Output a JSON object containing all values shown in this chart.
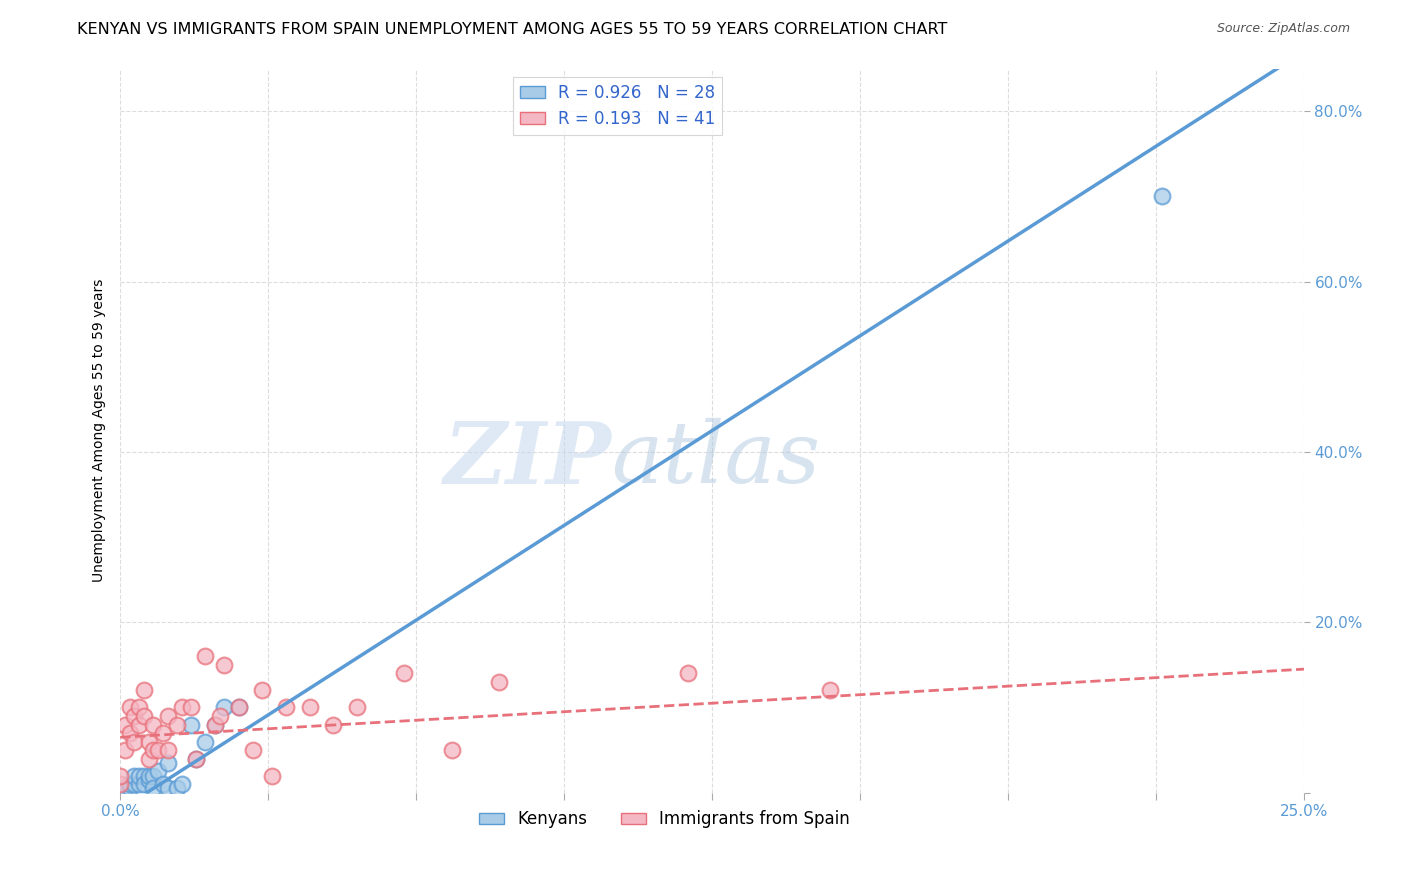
{
  "title": "KENYAN VS IMMIGRANTS FROM SPAIN UNEMPLOYMENT AMONG AGES 55 TO 59 YEARS CORRELATION CHART",
  "source": "Source: ZipAtlas.com",
  "ylabel": "Unemployment Among Ages 55 to 59 years",
  "xlim": [
    0.0,
    0.25
  ],
  "ylim": [
    0.0,
    0.85
  ],
  "xticks": [
    0.0,
    0.03125,
    0.0625,
    0.09375,
    0.125,
    0.15625,
    0.1875,
    0.21875,
    0.25
  ],
  "yticks": [
    0.0,
    0.2,
    0.4,
    0.6,
    0.8
  ],
  "x_label_only_ends": true,
  "xticklabels_ends": [
    "0.0%",
    "25.0%"
  ],
  "yticklabels": [
    "",
    "20.0%",
    "40.0%",
    "60.0%",
    "80.0%"
  ],
  "watermark_zip": "ZIP",
  "watermark_atlas": "atlas",
  "kenyan_x": [
    0.0,
    0.001,
    0.002,
    0.002,
    0.003,
    0.003,
    0.004,
    0.004,
    0.005,
    0.005,
    0.006,
    0.006,
    0.007,
    0.007,
    0.008,
    0.009,
    0.01,
    0.01,
    0.012,
    0.013,
    0.015,
    0.016,
    0.018,
    0.02,
    0.022,
    0.025,
    0.22
  ],
  "kenyan_y": [
    0.0,
    0.005,
    0.005,
    0.01,
    0.01,
    0.02,
    0.01,
    0.02,
    0.02,
    0.01,
    0.015,
    0.02,
    0.02,
    0.005,
    0.025,
    0.01,
    0.035,
    0.005,
    0.005,
    0.01,
    0.08,
    0.04,
    0.06,
    0.08,
    0.1,
    0.1,
    0.7
  ],
  "spain_x": [
    0.0,
    0.0,
    0.001,
    0.001,
    0.002,
    0.002,
    0.003,
    0.003,
    0.004,
    0.004,
    0.005,
    0.005,
    0.006,
    0.006,
    0.007,
    0.007,
    0.008,
    0.009,
    0.01,
    0.01,
    0.012,
    0.013,
    0.015,
    0.016,
    0.018,
    0.02,
    0.021,
    0.022,
    0.025,
    0.028,
    0.03,
    0.032,
    0.035,
    0.04,
    0.045,
    0.05,
    0.06,
    0.07,
    0.08,
    0.12,
    0.15
  ],
  "spain_y": [
    0.01,
    0.02,
    0.05,
    0.08,
    0.1,
    0.07,
    0.09,
    0.06,
    0.1,
    0.08,
    0.12,
    0.09,
    0.06,
    0.04,
    0.08,
    0.05,
    0.05,
    0.07,
    0.09,
    0.05,
    0.08,
    0.1,
    0.1,
    0.04,
    0.16,
    0.08,
    0.09,
    0.15,
    0.1,
    0.05,
    0.12,
    0.02,
    0.1,
    0.1,
    0.08,
    0.1,
    0.14,
    0.05,
    0.13,
    0.14,
    0.12
  ],
  "kenyan_line": [
    0.0,
    -0.02,
    0.25,
    0.87
  ],
  "spain_line": [
    0.0,
    0.065,
    0.25,
    0.145
  ],
  "kenyan_color": "#5b9bd5",
  "spain_color": "#e8707a",
  "kenyan_scatter_color": "#a8cce8",
  "spain_scatter_color": "#f4b8c4",
  "background_color": "#ffffff",
  "grid_color": "#dddddd",
  "legend_r_n_color": "#3366cc",
  "title_fontsize": 11.5,
  "axis_label_fontsize": 10,
  "tick_fontsize": 11
}
